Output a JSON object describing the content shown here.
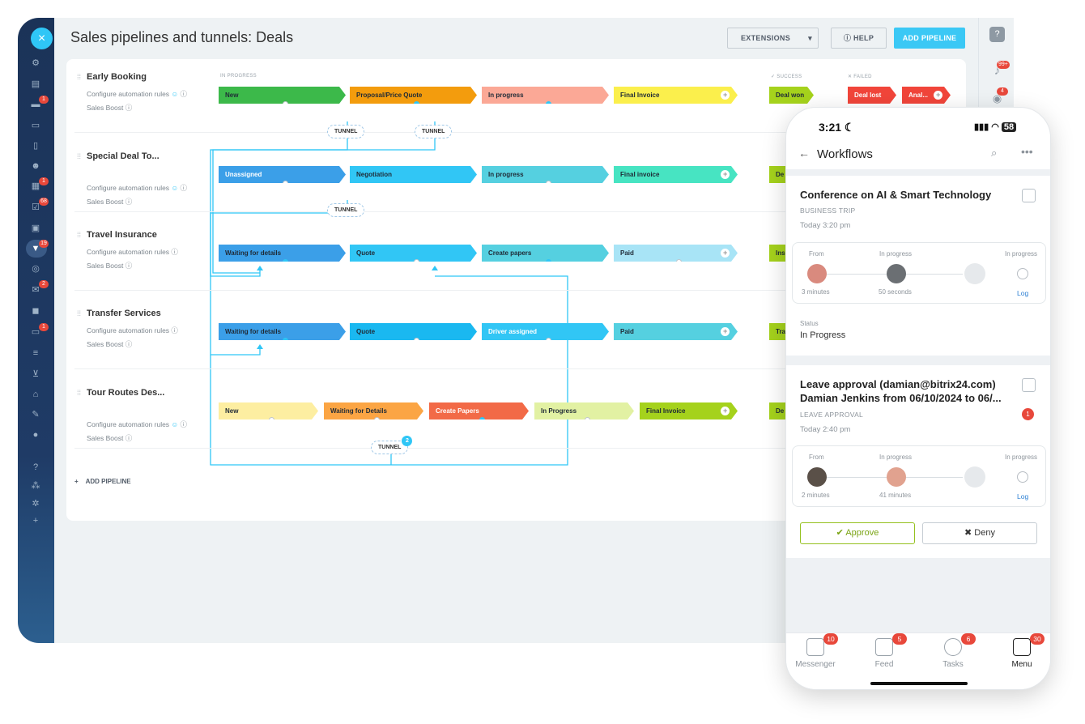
{
  "app": {
    "title": "Sales pipelines and tunnels: Deals",
    "extensions_label": "EXTENSIONS",
    "help_label": "HELP",
    "add_pipeline_label": "ADD PIPELINE",
    "add_pipeline_bottom_label": "ADD PIPELINE",
    "close_icon": "×"
  },
  "left_badges": [
    "1",
    "1",
    "68",
    "19",
    "2",
    "1"
  ],
  "right_badges": [
    "99+",
    "4"
  ],
  "column_headers": {
    "in_progress": "IN PROGRESS",
    "success": "SUCCESS",
    "failed": "FAILED"
  },
  "pipelines": [
    {
      "name": "Early Booking",
      "automation": "Configure automation rules",
      "boost": "Sales Boost",
      "stages": [
        "New",
        "Proposal/Price Quote",
        "In progress",
        "Final Invoice"
      ],
      "won": "Deal won",
      "lost": "Deal lost",
      "extra": "Anal..."
    },
    {
      "name": "Special Deal To...",
      "automation": "Configure automation rules",
      "boost": "Sales Boost",
      "stages": [
        "Unassigned",
        "Negotiation",
        "In progress",
        "Final invoice"
      ],
      "won": "De"
    },
    {
      "name": "Travel Insurance",
      "automation": "Configure automation rules",
      "boost": "Sales Boost",
      "stages": [
        "Waiting for details",
        "Quote",
        "Create papers",
        "Paid"
      ],
      "won": "Ins"
    },
    {
      "name": "Transfer Services",
      "automation": "Configure automation rules",
      "boost": "Sales Boost",
      "stages": [
        "Waiting for details",
        "Quote",
        "Driver assigned",
        "Paid"
      ],
      "won": "Tra"
    },
    {
      "name": "Tour Routes Des...",
      "automation": "Configure automation rules",
      "boost": "Sales Boost",
      "stages": [
        "New",
        "Waiting for Details",
        "Create Papers",
        "In Progress",
        "Final Invoice"
      ],
      "won": "De"
    }
  ],
  "tunnels": {
    "label": "TUNNEL",
    "badge": "2"
  },
  "colors": {
    "accent": "#3bc8f5",
    "sidebar": "#1b3358",
    "green": "#95c11f",
    "red": "#e8483b"
  },
  "phone": {
    "time": "3:21",
    "battery": "58",
    "header_title": "Workflows",
    "card1": {
      "title": "Conference on AI & Smart Technology",
      "type": "BUSINESS TRIP",
      "time": "Today 3:20 pm",
      "from_label": "From",
      "mid_label": "In progress",
      "end_label": "In progress",
      "from_time": "3 minutes",
      "mid_time": "50 seconds",
      "log": "Log",
      "status_label": "Status",
      "status_value": "In Progress"
    },
    "card2": {
      "title_line1": "Leave approval (damian@bitrix24.com)",
      "title_line2": "Damian Jenkins from 06/10/2024 to 06/...",
      "type": "LEAVE APPROVAL",
      "time": "Today 2:40 pm",
      "badge": "1",
      "from_label": "From",
      "mid_label": "In progress",
      "end_label": "In progress",
      "from_time": "2 minutes",
      "mid_time": "41 minutes",
      "log": "Log",
      "approve": "Approve",
      "deny": "Deny"
    },
    "tabs": [
      {
        "label": "Messenger",
        "badge": "10"
      },
      {
        "label": "Feed",
        "badge": "5"
      },
      {
        "label": "Tasks",
        "badge": "6"
      },
      {
        "label": "Menu",
        "badge": "30"
      }
    ]
  }
}
